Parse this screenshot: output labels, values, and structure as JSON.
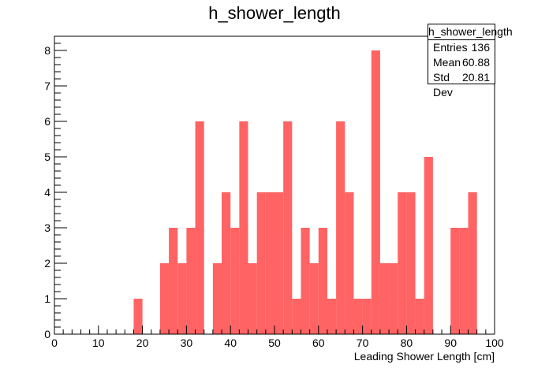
{
  "chart_data": {
    "type": "bar",
    "title": "h_shower_length",
    "xlabel": "Leading Shower Length [cm]",
    "ylabel": "",
    "xlim": [
      0,
      100
    ],
    "ylim": [
      0,
      8.4
    ],
    "bin_width": 2,
    "x_ticks": [
      "0",
      "10",
      "20",
      "30",
      "40",
      "50",
      "60",
      "70",
      "80",
      "90",
      "100"
    ],
    "y_ticks": [
      "0",
      "1",
      "2",
      "3",
      "4",
      "5",
      "6",
      "7",
      "8"
    ],
    "bin_low_edges": [
      0,
      2,
      4,
      6,
      8,
      10,
      12,
      14,
      16,
      18,
      20,
      22,
      24,
      26,
      28,
      30,
      32,
      34,
      36,
      38,
      40,
      42,
      44,
      46,
      48,
      50,
      52,
      54,
      56,
      58,
      60,
      62,
      64,
      66,
      68,
      70,
      72,
      74,
      76,
      78,
      80,
      82,
      84,
      86,
      88,
      90,
      92,
      94,
      96,
      98
    ],
    "values": [
      0,
      0,
      0,
      0,
      0,
      0,
      0,
      0,
      0,
      1,
      0,
      0,
      2,
      3,
      2,
      3,
      6,
      0,
      2,
      4,
      3,
      6,
      2,
      4,
      4,
      4,
      6,
      1,
      3,
      2,
      3,
      1,
      6,
      4,
      1,
      1,
      8,
      2,
      2,
      4,
      4,
      1,
      5,
      0,
      0,
      3,
      3,
      4,
      0,
      0
    ],
    "bar_color": "#ff6363",
    "grid": false,
    "legend": "none"
  },
  "stats": {
    "title": "h_shower_length",
    "rows": [
      {
        "label": "Entries",
        "value": "136"
      },
      {
        "label": "Mean",
        "value": "60.88"
      },
      {
        "label": "Std Dev",
        "value": "20.81"
      }
    ]
  }
}
